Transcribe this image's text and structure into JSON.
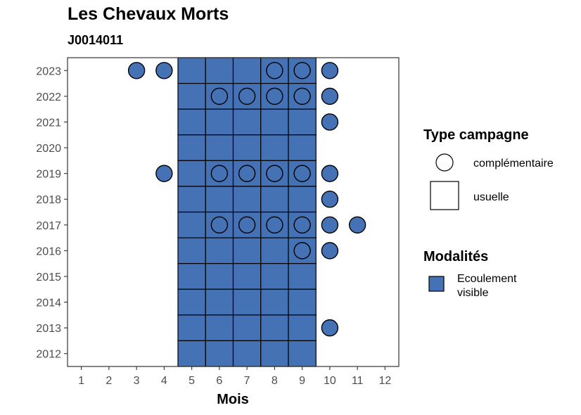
{
  "title": "Les Chevaux Morts",
  "subtitle": "J0014011",
  "chart_data": {
    "type": "heatmap",
    "title": "Les Chevaux Morts",
    "subtitle": "J0014011",
    "xlabel": "Mois",
    "ylabel": "",
    "x_ticks": [
      1,
      2,
      3,
      4,
      5,
      6,
      7,
      8,
      9,
      10,
      11,
      12
    ],
    "y_ticks": [
      2012,
      2013,
      2014,
      2015,
      2016,
      2017,
      2018,
      2019,
      2020,
      2021,
      2022,
      2023
    ],
    "xlim": [
      0.5,
      12.5
    ],
    "ylim": [
      2011.5,
      2023.5
    ],
    "grid": false,
    "fill_color": "#4472b4",
    "legend_placement": "right",
    "legend": {
      "type_title": "Type campagne",
      "type_items": [
        {
          "shape": "circle",
          "label": "complémentaire"
        },
        {
          "shape": "square",
          "label": "usuelle"
        }
      ],
      "modalite_title": "Modalités",
      "modalite_items": [
        {
          "color": "#4472b4",
          "label_lines": [
            "Ecoulement",
            "visible"
          ]
        }
      ]
    },
    "usuelle": [
      {
        "year": 2023,
        "months": [
          5,
          6,
          7,
          8,
          9
        ],
        "modalite": "Ecoulement visible"
      },
      {
        "year": 2022,
        "months": [
          5,
          6,
          7,
          8,
          9
        ],
        "modalite": "Ecoulement visible"
      },
      {
        "year": 2021,
        "months": [
          5,
          6,
          7,
          8,
          9
        ],
        "modalite": "Ecoulement visible"
      },
      {
        "year": 2020,
        "months": [
          5,
          6,
          7,
          8,
          9
        ],
        "modalite": "Ecoulement visible"
      },
      {
        "year": 2019,
        "months": [
          5,
          6,
          7,
          8,
          9
        ],
        "modalite": "Ecoulement visible"
      },
      {
        "year": 2018,
        "months": [
          5,
          6,
          7,
          8,
          9
        ],
        "modalite": "Ecoulement visible"
      },
      {
        "year": 2017,
        "months": [
          5,
          6,
          7,
          8,
          9
        ],
        "modalite": "Ecoulement visible"
      },
      {
        "year": 2016,
        "months": [
          5,
          6,
          7,
          8,
          9
        ],
        "modalite": "Ecoulement visible"
      },
      {
        "year": 2015,
        "months": [
          5,
          6,
          7,
          8,
          9
        ],
        "modalite": "Ecoulement visible"
      },
      {
        "year": 2014,
        "months": [
          5,
          6,
          7,
          8,
          9
        ],
        "modalite": "Ecoulement visible"
      },
      {
        "year": 2013,
        "months": [
          5,
          6,
          7,
          8,
          9
        ],
        "modalite": "Ecoulement visible"
      },
      {
        "year": 2012,
        "months": [
          5,
          6,
          7,
          8,
          9
        ],
        "modalite": "Ecoulement visible"
      }
    ],
    "complementaire": [
      {
        "year": 2023,
        "months": [
          3,
          4,
          8,
          9,
          10
        ],
        "modalite": "Ecoulement visible"
      },
      {
        "year": 2022,
        "months": [
          6,
          7,
          8,
          9,
          10
        ],
        "modalite": "Ecoulement visible"
      },
      {
        "year": 2021,
        "months": [
          10
        ],
        "modalite": "Ecoulement visible"
      },
      {
        "year": 2019,
        "months": [
          4,
          6,
          7,
          8,
          9,
          10
        ],
        "modalite": "Ecoulement visible"
      },
      {
        "year": 2018,
        "months": [
          10
        ],
        "modalite": "Ecoulement visible"
      },
      {
        "year": 2017,
        "months": [
          6,
          7,
          8,
          9,
          10,
          11
        ],
        "modalite": "Ecoulement visible"
      },
      {
        "year": 2016,
        "months": [
          9,
          10
        ],
        "modalite": "Ecoulement visible"
      },
      {
        "year": 2013,
        "months": [
          10
        ],
        "modalite": "Ecoulement visible"
      }
    ]
  }
}
